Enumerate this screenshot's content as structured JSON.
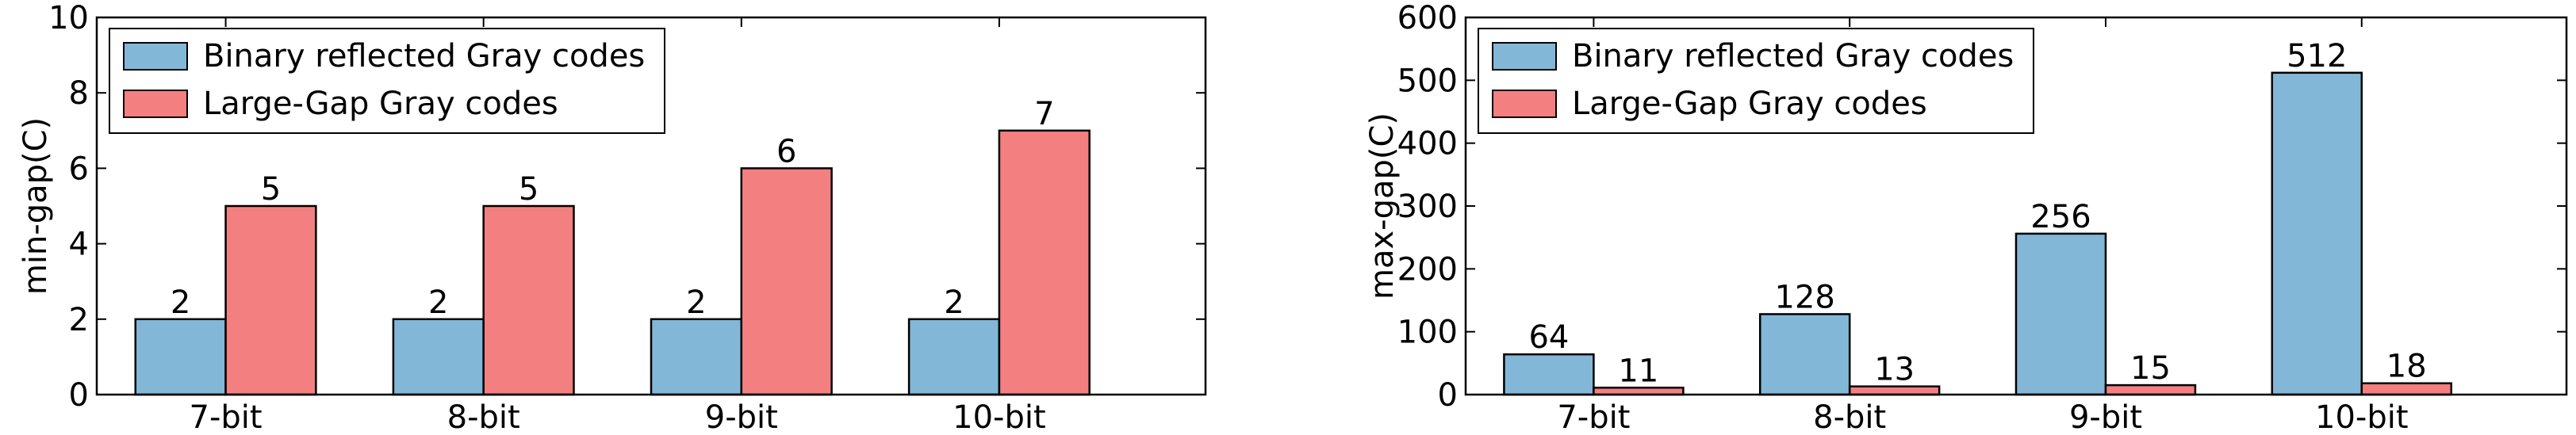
{
  "chart_data": [
    {
      "type": "bar",
      "categories": [
        "7-bit",
        "8-bit",
        "9-bit",
        "10-bit"
      ],
      "series": [
        {
          "name": "Binary reflected Gray codes",
          "values": [
            2,
            2,
            2,
            2
          ],
          "color": "#82b7d8"
        },
        {
          "name": "Large-Gap Gray codes",
          "values": [
            5,
            5,
            6,
            7
          ],
          "color": "#f47f80"
        }
      ],
      "title": "",
      "xlabel": "",
      "ylabel": "min-gap(C)",
      "ylim": [
        0,
        10
      ],
      "yticks": [
        0,
        2,
        4,
        6,
        8,
        10
      ],
      "grid": false,
      "legend": "top-left"
    },
    {
      "type": "bar",
      "categories": [
        "7-bit",
        "8-bit",
        "9-bit",
        "10-bit"
      ],
      "series": [
        {
          "name": "Binary reflected Gray codes",
          "values": [
            64,
            128,
            256,
            512
          ],
          "color": "#82b7d8"
        },
        {
          "name": "Large-Gap Gray codes",
          "values": [
            11,
            13,
            15,
            18
          ],
          "color": "#f47f80"
        }
      ],
      "title": "",
      "xlabel": "",
      "ylabel": "max-gap(C)",
      "ylim": [
        0,
        600
      ],
      "yticks": [
        0,
        100,
        200,
        300,
        400,
        500,
        600
      ],
      "grid": false,
      "legend": "top-left"
    }
  ]
}
